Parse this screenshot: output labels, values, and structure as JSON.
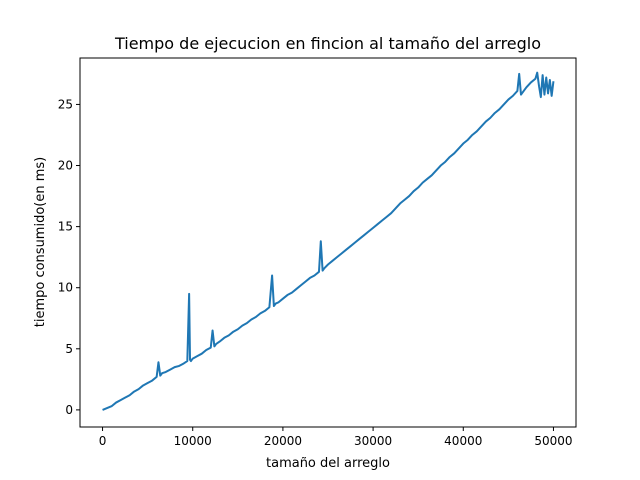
{
  "chart_data": {
    "type": "line",
    "title": "Tiempo de ejecucion en fincion al tamaño del arreglo",
    "xlabel": "tamaño del arreglo",
    "ylabel": "tiempo consumido(en ms)",
    "xlim": [
      -2500,
      52500
    ],
    "ylim": [
      -1.4,
      28.8
    ],
    "xticks": [
      0,
      10000,
      20000,
      30000,
      40000,
      50000
    ],
    "yticks": [
      0,
      5,
      10,
      15,
      20,
      25
    ],
    "grid": false,
    "legend": "none",
    "series": [
      {
        "color": "#1f77b4",
        "x": [
          0,
          1000,
          1500,
          2000,
          2500,
          3000,
          3500,
          4000,
          4500,
          5000,
          5500,
          6000,
          6200,
          6400,
          6600,
          7000,
          7500,
          8000,
          8500,
          9000,
          9400,
          9600,
          9700,
          9800,
          10000,
          10500,
          11000,
          11500,
          12000,
          12200,
          12400,
          12600,
          13000,
          13500,
          14000,
          14500,
          15000,
          15500,
          16000,
          16500,
          17000,
          17500,
          18000,
          18500,
          18800,
          19000,
          19200,
          19500,
          20000,
          20500,
          21000,
          21500,
          22000,
          22500,
          23000,
          23500,
          24000,
          24200,
          24400,
          24600,
          25000,
          25500,
          26000,
          26500,
          27000,
          27500,
          28000,
          28500,
          29000,
          29500,
          30000,
          30500,
          31000,
          31500,
          32000,
          32500,
          33000,
          33500,
          34000,
          34500,
          35000,
          35500,
          36000,
          36500,
          37000,
          37500,
          38000,
          38500,
          39000,
          39500,
          40000,
          40500,
          41000,
          41500,
          42000,
          42500,
          43000,
          43500,
          44000,
          44500,
          45000,
          45500,
          46000,
          46200,
          46400,
          46600,
          47000,
          47500,
          48000,
          48200,
          48400,
          48600,
          48800,
          49000,
          49200,
          49400,
          49600,
          49800,
          50000
        ],
        "y": [
          0.0,
          0.3,
          0.6,
          0.8,
          1.0,
          1.2,
          1.5,
          1.7,
          2.0,
          2.2,
          2.4,
          2.7,
          3.9,
          2.8,
          3.0,
          3.1,
          3.3,
          3.5,
          3.6,
          3.8,
          4.0,
          9.5,
          4.1,
          4.0,
          4.2,
          4.4,
          4.6,
          4.9,
          5.1,
          6.5,
          5.2,
          5.4,
          5.6,
          5.9,
          6.1,
          6.4,
          6.6,
          6.9,
          7.1,
          7.4,
          7.6,
          7.9,
          8.1,
          8.4,
          11.0,
          8.5,
          8.7,
          8.8,
          9.1,
          9.4,
          9.6,
          9.9,
          10.2,
          10.5,
          10.8,
          11.0,
          11.3,
          13.8,
          11.4,
          11.6,
          11.9,
          12.2,
          12.5,
          12.8,
          13.1,
          13.4,
          13.7,
          14.0,
          14.3,
          14.6,
          14.9,
          15.2,
          15.5,
          15.8,
          16.1,
          16.5,
          16.9,
          17.2,
          17.5,
          17.9,
          18.2,
          18.6,
          18.9,
          19.2,
          19.6,
          20.0,
          20.3,
          20.7,
          21.0,
          21.4,
          21.8,
          22.1,
          22.5,
          22.8,
          23.2,
          23.6,
          23.9,
          24.3,
          24.6,
          25.0,
          25.4,
          25.7,
          26.1,
          27.5,
          25.8,
          26.0,
          26.4,
          26.8,
          27.1,
          27.6,
          26.5,
          25.6,
          27.4,
          25.8,
          27.2,
          25.9,
          27.0,
          25.7,
          26.9
        ]
      }
    ]
  }
}
